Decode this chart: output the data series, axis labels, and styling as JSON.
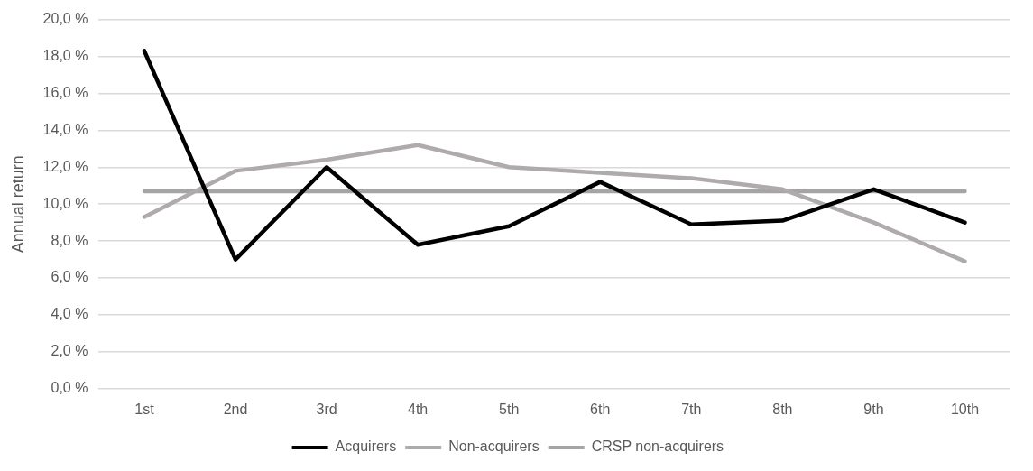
{
  "chart_data": {
    "type": "line",
    "ylabel": "Annual return",
    "categories": [
      "1st",
      "2nd",
      "3rd",
      "4th",
      "5th",
      "6th",
      "7th",
      "8th",
      "9th",
      "10th"
    ],
    "series": [
      {
        "name": "Acquirers",
        "color": "#000000",
        "values": [
          18.3,
          7.0,
          12.0,
          7.8,
          8.8,
          11.2,
          8.9,
          9.1,
          10.8,
          9.0
        ]
      },
      {
        "name": "Non-acquirers",
        "color": "#afabab",
        "values": [
          9.3,
          11.8,
          12.4,
          13.2,
          12.0,
          11.7,
          11.4,
          10.8,
          9.0,
          6.9
        ]
      },
      {
        "name": "CRSP non-acquirers",
        "color": "#a5a5a5",
        "values": [
          10.7,
          10.7,
          10.7,
          10.7,
          10.7,
          10.7,
          10.7,
          10.7,
          10.7,
          10.7
        ]
      }
    ],
    "ylim": [
      0,
      20
    ],
    "yticks": [
      {
        "value": 0,
        "label": "0,0 %"
      },
      {
        "value": 2,
        "label": "2,0 %"
      },
      {
        "value": 4,
        "label": "4,0 %"
      },
      {
        "value": 6,
        "label": "6,0 %"
      },
      {
        "value": 8,
        "label": "8,0 %"
      },
      {
        "value": 10,
        "label": "10,0 %"
      },
      {
        "value": 12,
        "label": "12,0 %"
      },
      {
        "value": 14,
        "label": "14,0 %"
      },
      {
        "value": 16,
        "label": "16,0 %"
      },
      {
        "value": 18,
        "label": "18,0 %"
      },
      {
        "value": 20,
        "label": "20,0 %"
      }
    ],
    "grid": "y",
    "legend": "bottom",
    "marker": "none",
    "line_style": "solid"
  }
}
